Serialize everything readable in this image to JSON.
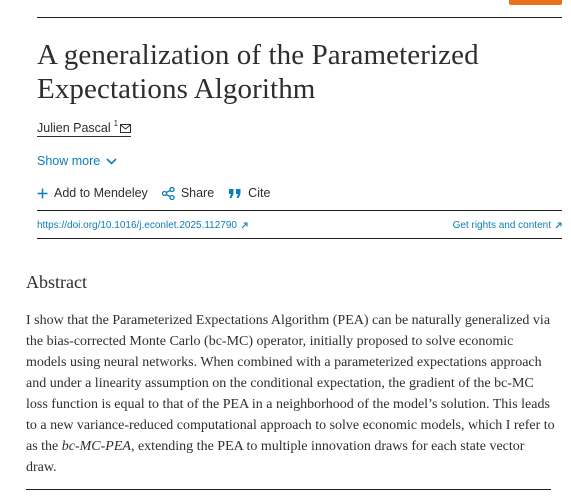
{
  "article": {
    "title": "A generalization of the Parameterized Expectations Algorithm",
    "author": {
      "name": "Julien Pascal",
      "affiliation_ref": "1"
    },
    "show_more_label": "Show more"
  },
  "actions": {
    "add_label": "Add to Mendeley",
    "share_label": "Share",
    "cite_label": "Cite"
  },
  "links": {
    "doi": "https://doi.org/10.1016/j.econlet.2025.112790",
    "rights": "Get rights and content"
  },
  "abstract": {
    "heading": "Abstract",
    "text_before": "I show that the Parameterized Expectations Algorithm (PEA) can be naturally generalized via the bias-corrected Monte Carlo (bc-MC) operator, initially proposed to solve economic models using neural networks. When combined with a parameterized expectations approach and under a linearity assumption on the conditional expectation, the gradient of the bc-MC loss function is equal to that of the PEA in a neighborhood of the model’s solution. This leads to a new variance-reduced computational approach to solve economic models, which I refer to as the ",
    "text_emphasis": "bc-MC-PEA",
    "text_after": ", extending the PEA to multiple innovation draws for each state vector draw."
  },
  "colors": {
    "link": "#0c7dbb",
    "text": "#2e2e2e",
    "brand_orange": "#e9711c"
  },
  "icons": {
    "mail": "mail-icon",
    "chevron": "chevron-down-icon",
    "add": "plus-icon",
    "share": "share-icon",
    "cite": "quote-icon",
    "external": "external-link-icon"
  }
}
